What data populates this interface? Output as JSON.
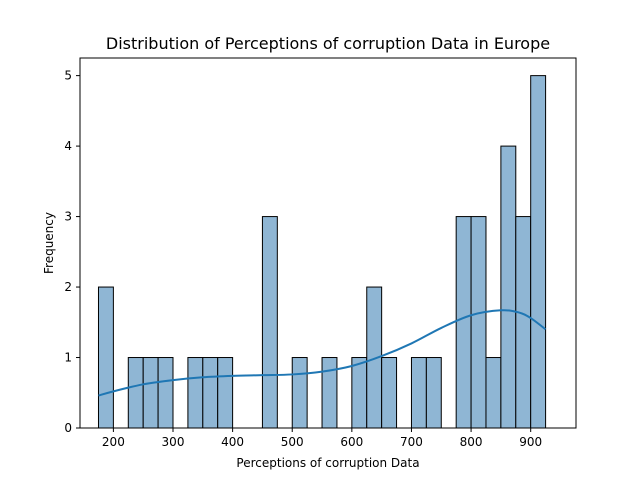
{
  "chart_data": {
    "type": "bar",
    "title": "Distribution of Perceptions of corruption Data in Europe",
    "xlabel": "Perceptions of corruption Data",
    "ylabel": "Frequency",
    "xlim": [
      144,
      976
    ],
    "ylim": [
      0,
      5.25
    ],
    "xticks": [
      200,
      300,
      400,
      500,
      600,
      700,
      800,
      900
    ],
    "yticks": [
      0,
      1,
      2,
      3,
      4,
      5
    ],
    "bins": [
      {
        "start": 175,
        "end": 200,
        "count": 2
      },
      {
        "start": 200,
        "end": 225,
        "count": 0
      },
      {
        "start": 225,
        "end": 250,
        "count": 1
      },
      {
        "start": 250,
        "end": 275,
        "count": 1
      },
      {
        "start": 275,
        "end": 300,
        "count": 1
      },
      {
        "start": 300,
        "end": 325,
        "count": 0
      },
      {
        "start": 325,
        "end": 350,
        "count": 1
      },
      {
        "start": 350,
        "end": 375,
        "count": 1
      },
      {
        "start": 375,
        "end": 400,
        "count": 1
      },
      {
        "start": 400,
        "end": 425,
        "count": 0
      },
      {
        "start": 425,
        "end": 450,
        "count": 0
      },
      {
        "start": 450,
        "end": 475,
        "count": 3
      },
      {
        "start": 475,
        "end": 500,
        "count": 0
      },
      {
        "start": 500,
        "end": 525,
        "count": 1
      },
      {
        "start": 525,
        "end": 550,
        "count": 0
      },
      {
        "start": 550,
        "end": 575,
        "count": 1
      },
      {
        "start": 575,
        "end": 600,
        "count": 0
      },
      {
        "start": 600,
        "end": 625,
        "count": 1
      },
      {
        "start": 625,
        "end": 650,
        "count": 2
      },
      {
        "start": 650,
        "end": 675,
        "count": 1
      },
      {
        "start": 675,
        "end": 700,
        "count": 0
      },
      {
        "start": 700,
        "end": 725,
        "count": 1
      },
      {
        "start": 725,
        "end": 750,
        "count": 1
      },
      {
        "start": 750,
        "end": 775,
        "count": 0
      },
      {
        "start": 775,
        "end": 800,
        "count": 3
      },
      {
        "start": 800,
        "end": 825,
        "count": 3
      },
      {
        "start": 825,
        "end": 850,
        "count": 1
      },
      {
        "start": 850,
        "end": 875,
        "count": 4
      },
      {
        "start": 875,
        "end": 900,
        "count": 3
      },
      {
        "start": 900,
        "end": 925,
        "count": 5
      }
    ],
    "kde": {
      "x": [
        175,
        200,
        250,
        300,
        350,
        400,
        450,
        500,
        550,
        600,
        650,
        700,
        750,
        800,
        850,
        880,
        900,
        925
      ],
      "y": [
        0.46,
        0.52,
        0.62,
        0.68,
        0.72,
        0.74,
        0.75,
        0.76,
        0.8,
        0.88,
        1.02,
        1.2,
        1.42,
        1.6,
        1.67,
        1.64,
        1.56,
        1.4
      ]
    },
    "colors": {
      "bar": "#8fb6d4",
      "kde": "#1f77b4"
    },
    "grid": false,
    "legend": "none"
  }
}
